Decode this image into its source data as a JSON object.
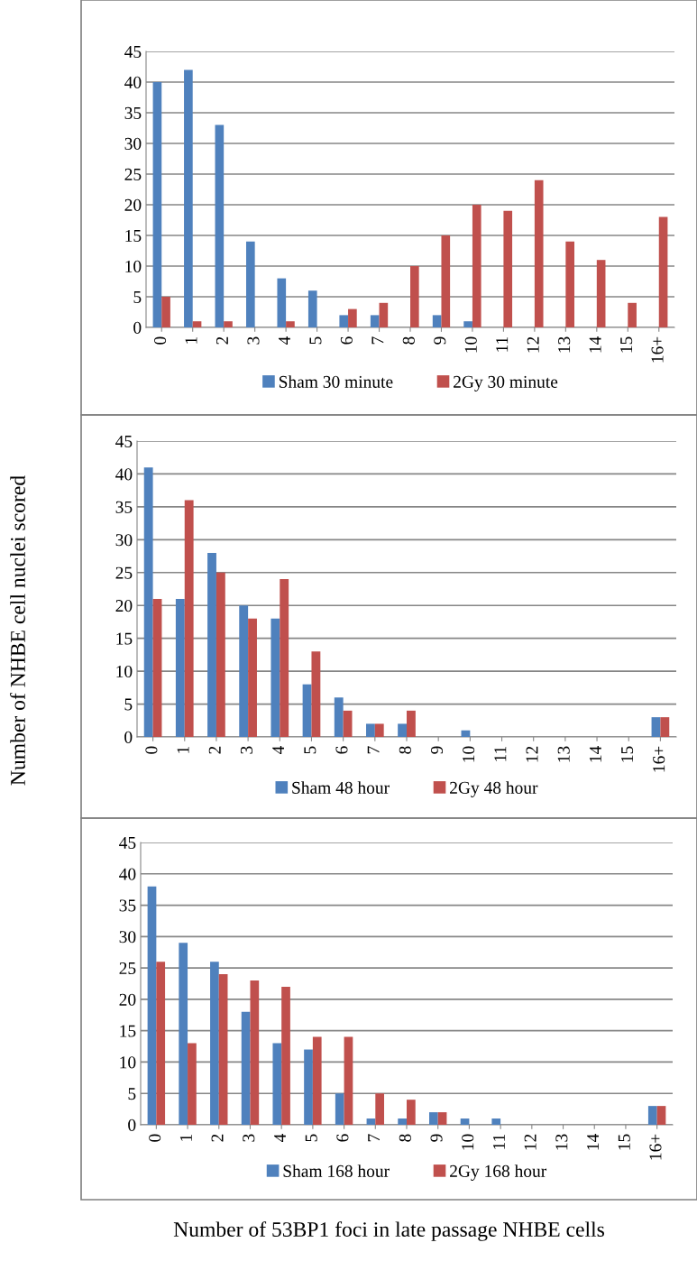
{
  "chart_data": [
    {
      "type": "bar",
      "categories": [
        "0",
        "1",
        "2",
        "3",
        "4",
        "5",
        "6",
        "7",
        "8",
        "9",
        "10",
        "11",
        "12",
        "13",
        "14",
        "15",
        "16+"
      ],
      "ylim": [
        0,
        45
      ],
      "yticks": [
        0,
        5,
        10,
        15,
        20,
        25,
        30,
        35,
        40,
        45
      ],
      "grid": "y",
      "legend": "bottom",
      "series": [
        {
          "name": "Sham 30 minute",
          "color": "#4f81bd",
          "values": [
            40,
            42,
            33,
            14,
            8,
            6,
            2,
            2,
            0,
            2,
            1,
            0,
            0,
            0,
            0,
            0,
            0
          ]
        },
        {
          "name": "2Gy 30 minute",
          "color": "#c0504d",
          "values": [
            5,
            1,
            1,
            0,
            1,
            0,
            3,
            4,
            10,
            15,
            20,
            19,
            24,
            14,
            11,
            4,
            18
          ]
        }
      ]
    },
    {
      "type": "bar",
      "categories": [
        "0",
        "1",
        "2",
        "3",
        "4",
        "5",
        "6",
        "7",
        "8",
        "9",
        "10",
        "11",
        "12",
        "13",
        "14",
        "15",
        "16+"
      ],
      "ylim": [
        0,
        45
      ],
      "yticks": [
        0,
        5,
        10,
        15,
        20,
        25,
        30,
        35,
        40,
        45
      ],
      "grid": "y",
      "legend": "bottom",
      "ylabel": "Number of NHBE cell nuclei scored",
      "series": [
        {
          "name": "Sham 48 hour",
          "color": "#4f81bd",
          "values": [
            41,
            21,
            28,
            20,
            18,
            8,
            6,
            2,
            2,
            0,
            1,
            0,
            0,
            0,
            0,
            0,
            3
          ]
        },
        {
          "name": "2Gy 48 hour",
          "color": "#c0504d",
          "values": [
            21,
            36,
            25,
            18,
            24,
            13,
            4,
            2,
            4,
            0,
            0,
            0,
            0,
            0,
            0,
            0,
            3
          ]
        }
      ]
    },
    {
      "type": "bar",
      "categories": [
        "0",
        "1",
        "2",
        "3",
        "4",
        "5",
        "6",
        "7",
        "8",
        "9",
        "10",
        "11",
        "12",
        "13",
        "14",
        "15",
        "16+"
      ],
      "ylim": [
        0,
        45
      ],
      "yticks": [
        0,
        5,
        10,
        15,
        20,
        25,
        30,
        35,
        40,
        45
      ],
      "grid": "y",
      "legend": "bottom",
      "xlabel": "Number of 53BP1 foci in late passage NHBE cells",
      "series": [
        {
          "name": "Sham 168 hour",
          "color": "#4f81bd",
          "values": [
            38,
            29,
            26,
            18,
            13,
            12,
            5,
            1,
            1,
            2,
            1,
            1,
            0,
            0,
            0,
            0,
            3
          ]
        },
        {
          "name": "2Gy 168 hour",
          "color": "#c0504d",
          "values": [
            26,
            13,
            24,
            23,
            22,
            14,
            14,
            5,
            4,
            2,
            0,
            0,
            0,
            0,
            0,
            0,
            3
          ]
        }
      ]
    }
  ]
}
